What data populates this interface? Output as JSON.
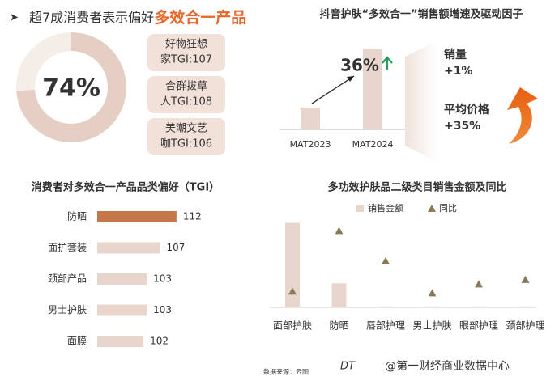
{
  "header": {
    "prefix": "超7成消费者表示偏好",
    "highlight": "多效合一产品"
  },
  "personas": [
    [
      "好物狂想",
      "家TGI:107"
    ],
    [
      "合群拔草",
      "人TGI:108"
    ],
    [
      "美潮文艺",
      "咖TGI:106"
    ]
  ],
  "chart_data": [
    {
      "type": "donut",
      "values": [
        74,
        26
      ],
      "value_labels": [
        "74%",
        null
      ],
      "colors": [
        "#e5cfc4",
        "#f5ede8"
      ]
    },
    {
      "type": "bar",
      "title": "抖音护肤“多效合一”销售额增速及驱动因子",
      "categories": [
        "MAT2023",
        "MAT2024"
      ],
      "values": [
        27,
        100
      ],
      "color": "#e8d5cc",
      "ylim": [
        0,
        100
      ],
      "annotation": "36%",
      "drivers": [
        {
          "label": "销量",
          "value_label": "+1%"
        },
        {
          "label": "平均价格",
          "value_label": "+35%"
        }
      ]
    },
    {
      "type": "hbar",
      "title": "消费者对多效合一产品品类偏好（TGI）",
      "categories": [
        "防晒",
        "面护套装",
        "颈部产品",
        "男士护肤",
        "面膜"
      ],
      "values": [
        112,
        107,
        103,
        103,
        102
      ],
      "colors": [
        "#c4784a",
        "#e8d5cc",
        "#e8d5cc",
        "#e8d5cc",
        "#e8d5cc"
      ],
      "xlim": [
        88,
        114
      ]
    },
    {
      "type": "combo",
      "title": "多功效护肤品二级类目销售金额及同比",
      "categories": [
        "面部护肤",
        "防晒",
        "唇部护理",
        "男士护肤",
        "眼部护理",
        "颈部护理"
      ],
      "ylim": [
        0,
        100
      ],
      "y2lim": [
        0,
        100
      ],
      "series": [
        {
          "name": "销售金额",
          "color": "#e8d5cc",
          "values": [
            95,
            27,
            1,
            1,
            1,
            1
          ]
        },
        {
          "name": "同比",
          "color": "#8b7a5a",
          "axis": "y2",
          "values": [
            18,
            86,
            52,
            16,
            26,
            31
          ]
        }
      ]
    }
  ],
  "footer": {
    "source": "数据来源：云图",
    "watermark": "@第一财经商业数据中心"
  }
}
